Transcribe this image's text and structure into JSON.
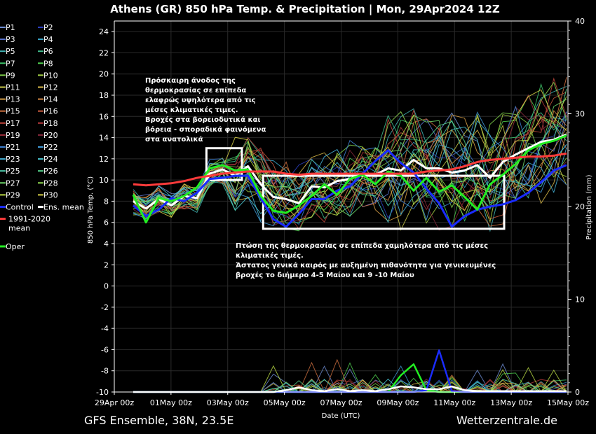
{
  "chart_data": {
    "type": "line",
    "title": "Athens  (GR)  850 hPa Temp. & Precipitation | Mon, 29Apr2024 12Z",
    "xlabel": "Date (UTC)",
    "ylabel": "850 hPa Temp. (°C)",
    "y2label": "Precipitation (mm)",
    "ylim": [
      -10,
      25
    ],
    "y2lim": [
      0,
      40
    ],
    "yticks": [
      24,
      22,
      20,
      18,
      16,
      14,
      12,
      10,
      8,
      6,
      4,
      2,
      0,
      -2,
      -4,
      -6,
      -8,
      -10
    ],
    "y2ticks": [
      40,
      30,
      20,
      10,
      0
    ],
    "xticks": [
      "29Apr 00z",
      "01May 00z",
      "03May 00z",
      "05May 00z",
      "07May 00z",
      "09May 00z",
      "11May 00z",
      "13May 00z",
      "15May 00z"
    ],
    "x_start": "29Apr 00z",
    "x_end": "15May 00z",
    "grid": true,
    "legend_position": "left",
    "legend": [
      {
        "name": "P1",
        "color": "#6f8fd6"
      },
      {
        "name": "P2",
        "color": "#2b3fbf"
      },
      {
        "name": "P3",
        "color": "#5a74d0"
      },
      {
        "name": "P4",
        "color": "#3aa6c8"
      },
      {
        "name": "P5",
        "color": "#41b4b4"
      },
      {
        "name": "P6",
        "color": "#3fb98a"
      },
      {
        "name": "P7",
        "color": "#3ec46a"
      },
      {
        "name": "P8",
        "color": "#4fce4f"
      },
      {
        "name": "P9",
        "color": "#7fd14a"
      },
      {
        "name": "P10",
        "color": "#a6d446"
      },
      {
        "name": "P11",
        "color": "#c9c94a"
      },
      {
        "name": "P12",
        "color": "#d8b848"
      },
      {
        "name": "P13",
        "color": "#d9a046"
      },
      {
        "name": "P14",
        "color": "#d58844"
      },
      {
        "name": "P15",
        "color": "#cf7040"
      },
      {
        "name": "P16",
        "color": "#c95a3e"
      },
      {
        "name": "P17",
        "color": "#c0463c"
      },
      {
        "name": "P18",
        "color": "#b1383a"
      },
      {
        "name": "P19",
        "color": "#9e2e3a"
      },
      {
        "name": "P20",
        "color": "#86283c"
      },
      {
        "name": "P21",
        "color": "#3d7fd0"
      },
      {
        "name": "P22",
        "color": "#3f98d6"
      },
      {
        "name": "P23",
        "color": "#44b0d6"
      },
      {
        "name": "P24",
        "color": "#49c4d0"
      },
      {
        "name": "P25",
        "color": "#4fd0b0"
      },
      {
        "name": "P26",
        "color": "#55d68c"
      },
      {
        "name": "P27",
        "color": "#70d96a"
      },
      {
        "name": "P28",
        "color": "#92dc52"
      },
      {
        "name": "P29",
        "color": "#b9d944"
      },
      {
        "name": "P30",
        "color": "#d6cf44"
      },
      {
        "name": "Control",
        "color": "#1a2cff"
      },
      {
        "name": "Ens. mean",
        "color": "#ffffff"
      },
      {
        "name": "1991-2020 mean",
        "color": "#ff3b3b"
      },
      {
        "name": "Oper",
        "color": "#22ee22"
      }
    ],
    "series": [
      {
        "name": "Ens. mean",
        "values": [
          8.0,
          7.3,
          8.2,
          7.6,
          8.5,
          8.3,
          10.6,
          11.0,
          10.4,
          11.3,
          9.6,
          8.4,
          8.2,
          7.8,
          9.4,
          9.3,
          9.9,
          10.1,
          10.6,
          10.5,
          11.1,
          10.9,
          11.9,
          11.1,
          11.1,
          10.7,
          10.9,
          11.4,
          10.2,
          11.7,
          12.4,
          13.0,
          13.6,
          13.8,
          14.3
        ]
      },
      {
        "name": "Control",
        "values": [
          7.6,
          6.6,
          7.2,
          8.3,
          8.0,
          8.8,
          10.1,
          10.2,
          10.4,
          10.4,
          8.3,
          6.3,
          5.6,
          6.8,
          8.2,
          8.2,
          9.0,
          9.4,
          10.6,
          11.8,
          12.8,
          11.6,
          10.7,
          9.2,
          7.8,
          5.6,
          6.6,
          7.2,
          7.5,
          7.7,
          8.1,
          8.8,
          9.8,
          10.9,
          11.4
        ]
      },
      {
        "name": "Oper",
        "values": [
          8.6,
          6.0,
          8.3,
          8.0,
          8.5,
          9.3,
          11.1,
          11.4,
          10.9,
          11.0,
          8.5,
          7.1,
          6.9,
          7.6,
          8.5,
          9.6,
          8.6,
          10.1,
          10.5,
          9.6,
          10.8,
          10.4,
          9.0,
          10.2,
          8.9,
          9.5,
          8.4,
          7.2,
          9.6,
          10.5,
          11.5,
          12.8,
          13.4,
          13.7,
          14.2
        ]
      },
      {
        "name": "1991-2020 mean",
        "values": [
          9.6,
          9.5,
          9.6,
          9.7,
          9.9,
          10.2,
          10.4,
          10.6,
          10.7,
          10.8,
          10.8,
          10.8,
          10.6,
          10.5,
          10.6,
          10.6,
          10.6,
          10.6,
          10.6,
          10.6,
          10.6,
          10.6,
          10.6,
          10.8,
          10.9,
          11.0,
          11.3,
          11.7,
          11.9,
          12.0,
          12.1,
          12.2,
          12.2,
          12.3,
          12.5
        ]
      },
      {
        "name": "Oper precipitation (mm)",
        "values": [
          0,
          0,
          0,
          0,
          0,
          0,
          0,
          0,
          0,
          0,
          0,
          0,
          0,
          0,
          0,
          0,
          0,
          0,
          0,
          0,
          0,
          1.8,
          3.0,
          0.2,
          0,
          0,
          0,
          0,
          0,
          0,
          0,
          0,
          0,
          0,
          0
        ]
      },
      {
        "name": "Control precipitation (mm)",
        "values": [
          0,
          0,
          0,
          0,
          0,
          0,
          0,
          0,
          0,
          0,
          0,
          0,
          0,
          0,
          0,
          0,
          0,
          0,
          0,
          0,
          0,
          0,
          0,
          0.2,
          4.5,
          0.1,
          0,
          0,
          0,
          0,
          0,
          0,
          0,
          0,
          0
        ]
      },
      {
        "name": "Ens. mean precipitation (mm)",
        "values": [
          0,
          0,
          0,
          0,
          0,
          0,
          0,
          0,
          0,
          0,
          0,
          0,
          0.2,
          0.5,
          0.2,
          0.1,
          0.3,
          0.1,
          0.2,
          0.1,
          0.3,
          0.6,
          0.5,
          0.3,
          0.3,
          0.6,
          0.2,
          0.1,
          0.1,
          0.1,
          0.1,
          0.1,
          0.1,
          0.1,
          0.1
        ]
      }
    ],
    "annotations": [
      {
        "lines": [
          "Πρόσκαιρη άνοδος της",
          "θερμοκρασίας σε επίπεδα",
          "ελαφρώς υψηλότερα από τις",
          "μέσες κλιματικές τιμες.",
          "Βροχές στα βορειοδυτικά και",
          "βόρεια - σποραδικά φαινόμενα",
          "στα ανατολικά"
        ]
      },
      {
        "lines": [
          "Πτώση της θερμοκρασίας σε επίπεδα χαμηλότερα από τις μέσες",
          "κλιματικές τιμές.",
          "Άστατος γενικά καιρός με αυξημένη πιθανότητα για γενικευμένες",
          "βροχές το διήμερο 4-5 Μαίου και 9 -10 Μαίου"
        ]
      }
    ],
    "highlight_boxes": [
      {
        "x_from": "02May 06z",
        "x_to": "03May 12z",
        "y_from": 10,
        "y_to": 13
      },
      {
        "x_from": "04May 06z",
        "x_to": "12May 18z",
        "y_from": 5.4,
        "y_to": 10.4
      }
    ]
  },
  "footer": {
    "left": "GFS Ensemble, 38N, 23.5E",
    "right": "Wetterzentrale.de"
  }
}
